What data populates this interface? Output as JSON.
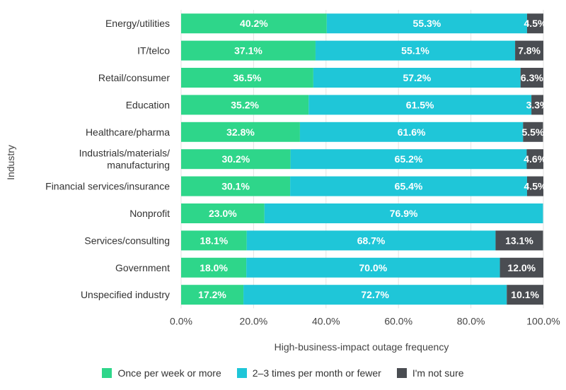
{
  "chart_data": {
    "type": "bar",
    "orientation": "horizontal",
    "stacked": true,
    "xlabel": "High-business-impact outage frequency",
    "ylabel": "Industry",
    "xlim": [
      0,
      100
    ],
    "xticks": [
      "0.0%",
      "20.0%",
      "40.0%",
      "60.0%",
      "80.0%",
      "100.0%"
    ],
    "grid": "vertical",
    "legend_position": "bottom",
    "categories": [
      "Energy/utilities",
      "IT/telco",
      "Retail/consumer",
      "Education",
      "Healthcare/pharma",
      "Industrials/materials/ manufacturing",
      "Financial services/insurance",
      "Nonprofit",
      "Services/consulting",
      "Government",
      "Unspecified industry"
    ],
    "category_lines": [
      [
        "Energy/utilities"
      ],
      [
        "IT/telco"
      ],
      [
        "Retail/consumer"
      ],
      [
        "Education"
      ],
      [
        "Healthcare/pharma"
      ],
      [
        "Industrials/materials/",
        "manufacturing"
      ],
      [
        "Financial services/insurance"
      ],
      [
        "Nonprofit"
      ],
      [
        "Services/consulting"
      ],
      [
        "Government"
      ],
      [
        "Unspecified industry"
      ]
    ],
    "series": [
      {
        "name": "Once per week or more",
        "color": "#2ed68a",
        "values": [
          40.2,
          37.1,
          36.5,
          35.2,
          32.8,
          30.2,
          30.1,
          23.0,
          18.1,
          18.0,
          17.2
        ],
        "labels": [
          "40.2%",
          "37.1%",
          "36.5%",
          "35.2%",
          "32.8%",
          "30.2%",
          "30.1%",
          "23.0%",
          "18.1%",
          "18.0%",
          "17.2%"
        ]
      },
      {
        "name": "2–3 times per month or fewer",
        "color": "#1fc6d8",
        "values": [
          55.3,
          55.1,
          57.2,
          61.5,
          61.6,
          65.2,
          65.4,
          76.9,
          68.7,
          70.0,
          72.7
        ],
        "labels": [
          "55.3%",
          "55.1%",
          "57.2%",
          "61.5%",
          "61.6%",
          "65.2%",
          "65.4%",
          "76.9%",
          "68.7%",
          "70.0%",
          "72.7%"
        ]
      },
      {
        "name": "I'm not sure",
        "color": "#4a4d52",
        "values": [
          4.5,
          7.8,
          6.3,
          3.3,
          5.5,
          4.6,
          4.5,
          0,
          13.1,
          12.0,
          10.1
        ],
        "labels": [
          "4.5%",
          "7.8%",
          "6.3%",
          "3.3%",
          "5.5%",
          "4.6%",
          "4.5%",
          "",
          "13.1%",
          "12.0%",
          "10.1%"
        ]
      }
    ]
  }
}
